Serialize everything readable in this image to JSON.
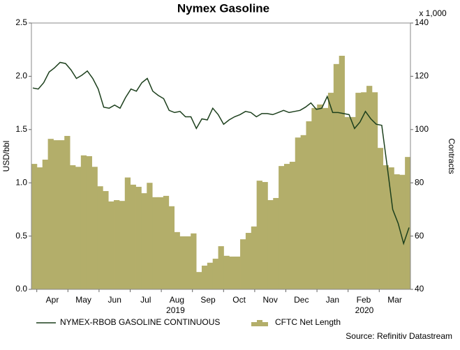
{
  "chart_data": {
    "type": "line-area",
    "title": "Nymex Gasoline",
    "ylabel": "USD/bbl",
    "y2label": "Contracts",
    "y2unit": "x 1,000",
    "source": "Source: Refinitiv Datastream",
    "x_month_labels": [
      "Apr",
      "May",
      "Jun",
      "Jul",
      "Aug",
      "Sep",
      "Oct",
      "Nov",
      "Dec",
      "Jan",
      "Feb",
      "Mar"
    ],
    "x_year_labels": [
      "2019",
      "2020"
    ],
    "ylim": [
      0,
      2.5
    ],
    "yticks": [
      {
        "value": 0,
        "label": "0.0"
      },
      {
        "value": 0.5,
        "label": "0.5"
      },
      {
        "value": 1,
        "label": "1.0"
      },
      {
        "value": 1.5,
        "label": "1.5"
      },
      {
        "value": 2,
        "label": "2.0"
      },
      {
        "value": 2.5,
        "label": "2.5"
      }
    ],
    "y2lim": [
      40,
      140
    ],
    "y2ticks": [
      40,
      60,
      80,
      100,
      120,
      140
    ],
    "series": [
      {
        "name": "NYMEX-RBOB GASOLINE CONTINUOUS",
        "color": "#1c3f1c",
        "kind": "line",
        "values": [
          1.89,
          1.88,
          1.94,
          2.04,
          2.08,
          2.13,
          2.12,
          2.06,
          1.98,
          2.01,
          2.05,
          1.98,
          1.88,
          1.71,
          1.7,
          1.73,
          1.7,
          1.8,
          1.88,
          1.86,
          1.94,
          1.98,
          1.86,
          1.82,
          1.79,
          1.68,
          1.66,
          1.67,
          1.62,
          1.62,
          1.51,
          1.6,
          1.59,
          1.7,
          1.64,
          1.55,
          1.59,
          1.62,
          1.64,
          1.67,
          1.66,
          1.62,
          1.65,
          1.65,
          1.64,
          1.66,
          1.68,
          1.66,
          1.67,
          1.68,
          1.71,
          1.75,
          1.69,
          1.7,
          1.81,
          1.66,
          1.66,
          1.65,
          1.64,
          1.51,
          1.57,
          1.67,
          1.6,
          1.55,
          1.54,
          1.15,
          0.75,
          0.62,
          0.43,
          0.58
        ]
      },
      {
        "name": "CFTC Net Length",
        "color": "#b3ae6a",
        "kind": "area",
        "axis": "y2",
        "values": [
          87.1,
          85.8,
          88.7,
          96.5,
          96,
          96,
          97.6,
          86.6,
          86,
          90.3,
          90,
          86,
          78.7,
          76.9,
          73,
          73.5,
          73.2,
          82,
          79.3,
          78.5,
          76.1,
          80,
          74.6,
          74.6,
          75.1,
          71.2,
          61.5,
          59.9,
          59.9,
          61,
          46.5,
          48.9,
          50,
          51.5,
          56.2,
          52.6,
          52.3,
          52.3,
          58.8,
          61.2,
          63.6,
          80.8,
          80.3,
          73.5,
          74.3,
          86.3,
          87.1,
          87.9,
          97,
          97.9,
          103.1,
          108.1,
          109.4,
          108.1,
          113.8,
          124.6,
          127.7,
          104.7,
          104.7,
          113.8,
          114,
          116.4,
          114,
          93.1,
          86.6,
          85.8,
          83.2,
          83,
          89.7
        ]
      }
    ]
  }
}
